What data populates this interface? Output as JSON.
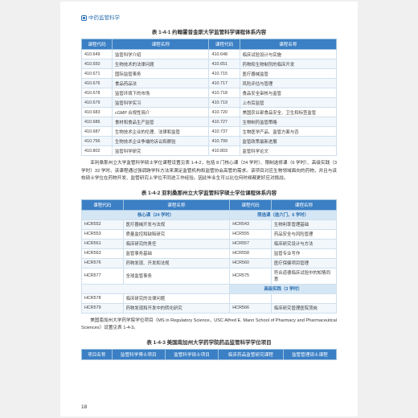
{
  "brand": "中药监管科学",
  "table1": {
    "title": "表 1-4-1  约翰霍普金斯大学监管科学课程体系内容",
    "headers": [
      "课程代码",
      "课程名称",
      "课程代码",
      "课程名称"
    ],
    "rows": [
      [
        "410.649",
        "监管科学介绍",
        "410.648",
        "临床试验设计与实施"
      ],
      [
        "410.650",
        "生物技术的法律问题",
        "410.651",
        "药物和生物制剂的临床开发"
      ],
      [
        "410.671",
        "国际监管事务",
        "410.715",
        "医疗器械监管"
      ],
      [
        "410.676",
        "食品药品法",
        "410.717",
        "风险评估与管理"
      ],
      [
        "410.678",
        "监管环境下的市场",
        "410.718",
        "食品安全审核与监管"
      ],
      [
        "410.679",
        "监管科学实习",
        "410.719",
        "上市后监管"
      ],
      [
        "410.683",
        "cGMP 合规性简介",
        "410.720",
        "美国农业部食品安全、卫生和标签监管"
      ],
      [
        "410.686",
        "食材和食品生产监管",
        "410.727",
        "生物制药监管策略"
      ],
      [
        "410.687",
        "生物技术企业的伦理、法律和监管",
        "410.737",
        "生物医学产品、监管方面与否"
      ],
      [
        "410.756",
        "生物技术企业争端的诉讼和察验",
        "410.799",
        "监管政策最新进展"
      ],
      [
        "410.802",
        "监管科学研究",
        "410.803",
        "监管科学论文"
      ]
    ]
  },
  "para1": "亚利桑那州立大学监管科学硕士学位课程设置见表 1-4-2，包括 8 门核心课（24 学时）、限制选修课（6 学时）、高级实践（3 学时）33 学时。该课程通过强调跨学科方法来满足监管机构和监管协会高管的需求。该项目对应生物领域面向的药物，并且与该校硕士学位在药物开发、监管研究上学位不同途工作经验。因此毕业生可以比位何时候都更好应对挑战。",
  "table2": {
    "title": "表 1-4-2  亚利桑那州立大学监管科学硕士学位课程体系内容",
    "headers": [
      "课程代码",
      "课程名称",
      "课程代码",
      "课程名称"
    ],
    "sub1": [
      "核心课（24 学时）",
      "限选课（选六门，6 学时）"
    ],
    "rows1": [
      [
        "HCR552",
        "医疗器械开发与法规",
        "HCR543",
        "生物利率管理基础"
      ],
      [
        "HCR553",
        "质量监控和缺陷研究",
        "HCR555",
        "药品安全与风险管理"
      ],
      [
        "HCR561",
        "临床研究的责任",
        "HCR557",
        "临床研究设计与方法"
      ],
      [
        "HCR563",
        "监管事务基础",
        "HCR558",
        "监管专业写作"
      ],
      [
        "HCR576",
        "药物发现、开发和法规",
        "HCR560",
        "医疗保健项目管理"
      ],
      [
        "HCR577",
        "全球监管事务",
        "HCR575",
        "符合道德临床试验中的知情同意"
      ]
    ],
    "sub2": "高级实践（3 学时）",
    "rows2": [
      [
        "HCR578",
        "临床研究的法律问题",
        "",
        ""
      ],
      [
        "HCR579",
        "药物发现和开发中的转化研究",
        "HCR566",
        "临床研究管理医院顶岗"
      ]
    ]
  },
  "para2": "美国南加州大学药学院学位项目（MS in Regulatory Science，USC Alfred E. Mann School of Pharmacy and Pharmaceutical Sciences）设置见表 1-4-3。",
  "table3": {
    "title": "表 1-4-3  美国南加州大学药学院药品监管科学学位项目",
    "headers": [
      "项目名称",
      "监管科学博士项目",
      "监管科学硕士项目",
      "临床药品监管研究课程",
      "监管管理硕士课程"
    ]
  },
  "pageNum": "18"
}
